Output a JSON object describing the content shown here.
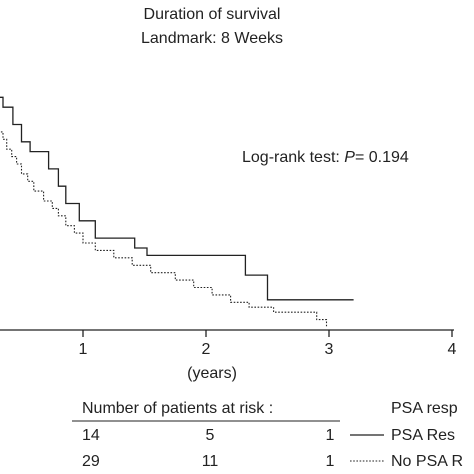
{
  "chart_data": {
    "type": "line",
    "title": "Duration of survival",
    "subtitle": "Landmark: 8 Weeks",
    "xlabel": "(years)",
    "ylabel": "",
    "xlim": [
      0,
      4
    ],
    "ylim": [
      0,
      1
    ],
    "x_ticks": [
      "1",
      "2",
      "3",
      "4"
    ],
    "x_tick_values": [
      1,
      2,
      3,
      4
    ],
    "grid": false,
    "annotation": {
      "prefix": "Log-rank test: ",
      "p_symbol": "P",
      "p_value": "= 0.194"
    },
    "legend": {
      "placement": "bottom-right",
      "heading": "PSA resp",
      "entries": [
        "PSA Res",
        "No PSA R"
      ]
    },
    "risk_table": {
      "heading": "Number of patients at risk :",
      "rows": [
        {
          "series": "PSA Res",
          "counts": [
            "14",
            "5",
            "1"
          ]
        },
        {
          "series": "No PSA R",
          "counts": [
            "29",
            "11",
            "1"
          ]
        }
      ]
    },
    "series": [
      {
        "name": "PSA Res",
        "style": "solid",
        "color": "#222222",
        "points": [
          [
            0,
            1.0
          ],
          [
            0.1,
            1.0
          ],
          [
            0.1,
            0.96
          ],
          [
            0.22,
            0.96
          ],
          [
            0.22,
            0.93
          ],
          [
            0.35,
            0.93
          ],
          [
            0.35,
            0.89
          ],
          [
            0.43,
            0.89
          ],
          [
            0.43,
            0.82
          ],
          [
            0.5,
            0.82
          ],
          [
            0.5,
            0.75
          ],
          [
            0.57,
            0.75
          ],
          [
            0.57,
            0.71
          ],
          [
            0.72,
            0.71
          ],
          [
            0.72,
            0.64
          ],
          [
            0.8,
            0.64
          ],
          [
            0.8,
            0.57
          ],
          [
            0.86,
            0.57
          ],
          [
            0.86,
            0.5
          ],
          [
            0.97,
            0.5
          ],
          [
            0.97,
            0.43
          ],
          [
            1.1,
            0.43
          ],
          [
            1.1,
            0.36
          ],
          [
            1.42,
            0.36
          ],
          [
            1.42,
            0.32
          ],
          [
            1.52,
            0.32
          ],
          [
            1.52,
            0.29
          ],
          [
            2.32,
            0.29
          ],
          [
            2.32,
            0.21
          ],
          [
            2.5,
            0.21
          ],
          [
            2.5,
            0.11
          ],
          [
            3.2,
            0.11
          ]
        ]
      },
      {
        "name": "No PSA R",
        "style": "dotted",
        "color": "#222222",
        "points": [
          [
            0,
            1.0
          ],
          [
            0.05,
            1.0
          ],
          [
            0.05,
            0.97
          ],
          [
            0.1,
            0.97
          ],
          [
            0.1,
            0.93
          ],
          [
            0.16,
            0.93
          ],
          [
            0.16,
            0.9
          ],
          [
            0.21,
            0.9
          ],
          [
            0.21,
            0.86
          ],
          [
            0.25,
            0.86
          ],
          [
            0.25,
            0.83
          ],
          [
            0.3,
            0.83
          ],
          [
            0.3,
            0.79
          ],
          [
            0.35,
            0.79
          ],
          [
            0.35,
            0.76
          ],
          [
            0.38,
            0.76
          ],
          [
            0.38,
            0.72
          ],
          [
            0.42,
            0.72
          ],
          [
            0.42,
            0.69
          ],
          [
            0.46,
            0.69
          ],
          [
            0.46,
            0.66
          ],
          [
            0.5,
            0.66
          ],
          [
            0.5,
            0.62
          ],
          [
            0.55,
            0.62
          ],
          [
            0.55,
            0.59
          ],
          [
            0.6,
            0.59
          ],
          [
            0.6,
            0.55
          ],
          [
            0.68,
            0.55
          ],
          [
            0.68,
            0.51
          ],
          [
            0.75,
            0.51
          ],
          [
            0.75,
            0.48
          ],
          [
            0.8,
            0.48
          ],
          [
            0.8,
            0.45
          ],
          [
            0.86,
            0.45
          ],
          [
            0.86,
            0.41
          ],
          [
            0.93,
            0.41
          ],
          [
            0.93,
            0.38
          ],
          [
            1.0,
            0.38
          ],
          [
            1.0,
            0.34
          ],
          [
            1.1,
            0.34
          ],
          [
            1.1,
            0.31
          ],
          [
            1.25,
            0.31
          ],
          [
            1.25,
            0.28
          ],
          [
            1.4,
            0.28
          ],
          [
            1.4,
            0.25
          ],
          [
            1.55,
            0.25
          ],
          [
            1.55,
            0.22
          ],
          [
            1.75,
            0.22
          ],
          [
            1.75,
            0.19
          ],
          [
            1.9,
            0.19
          ],
          [
            1.9,
            0.16
          ],
          [
            2.05,
            0.16
          ],
          [
            2.05,
            0.13
          ],
          [
            2.2,
            0.13
          ],
          [
            2.2,
            0.1
          ],
          [
            2.35,
            0.1
          ],
          [
            2.35,
            0.08
          ],
          [
            2.55,
            0.08
          ],
          [
            2.55,
            0.06
          ],
          [
            2.9,
            0.06
          ],
          [
            2.9,
            0.03
          ],
          [
            2.98,
            0.03
          ],
          [
            2.98,
            0.0
          ]
        ]
      }
    ]
  }
}
